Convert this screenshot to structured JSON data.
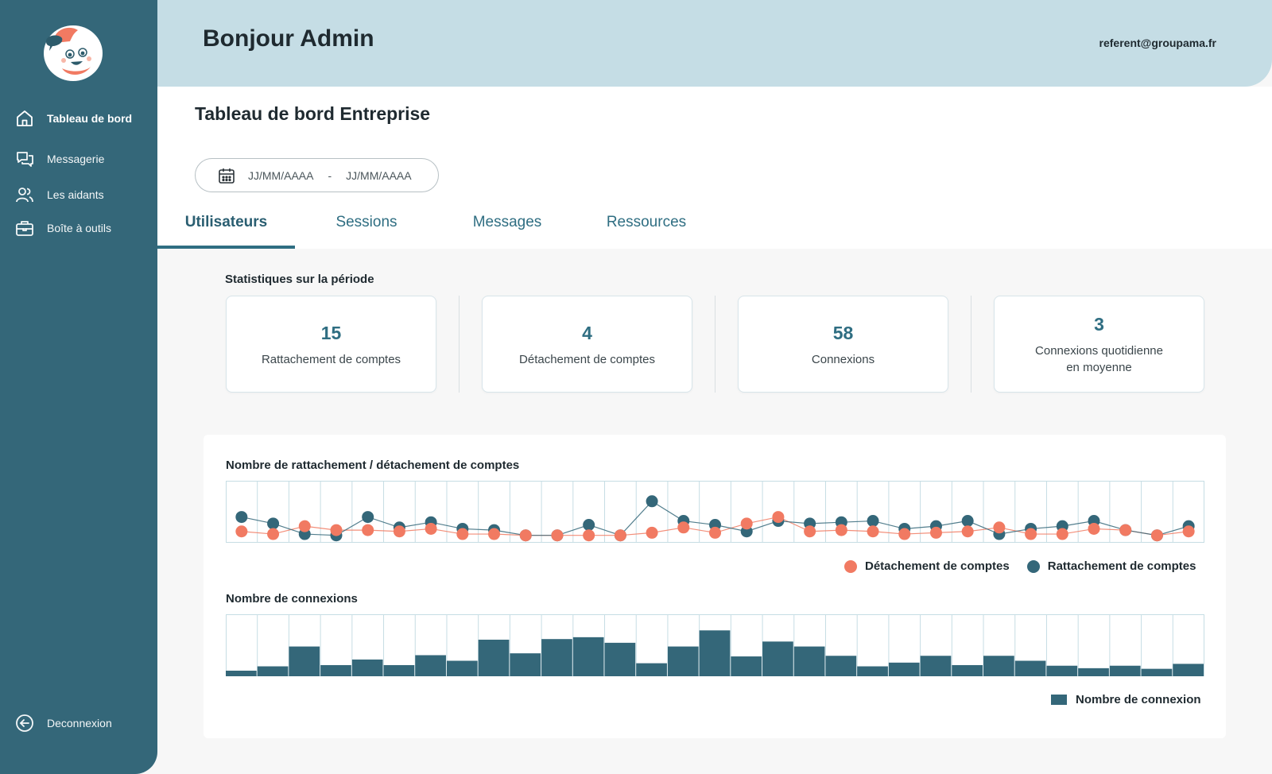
{
  "header": {
    "greeting": "Bonjour Admin",
    "email": "referent@groupama.fr"
  },
  "sidebar": {
    "items": [
      {
        "label": "Tableau de bord",
        "icon": "home-icon"
      },
      {
        "label": "Messagerie",
        "icon": "chat-icon"
      },
      {
        "label": "Les aidants",
        "icon": "users-icon"
      },
      {
        "label": "Boîte à outils",
        "icon": "toolbox-icon"
      }
    ],
    "logout": {
      "label": "Deconnexion",
      "icon": "logout-icon"
    }
  },
  "page": {
    "title": "Tableau de bord Entreprise",
    "date_start": "JJ/MM/AAAA",
    "date_sep": "-",
    "date_end": "JJ/MM/AAAA",
    "tabs": [
      "Utilisateurs",
      "Sessions",
      "Messages",
      "Ressources"
    ],
    "active_tab": "Utilisateurs"
  },
  "stats": {
    "title": "Statistiques sur la période",
    "cards": [
      {
        "value": "15",
        "label": "Rattachement de comptes"
      },
      {
        "value": "4",
        "label": "Détachement de comptes"
      },
      {
        "value": "58",
        "label": "Connexions"
      },
      {
        "value": "3",
        "label_line1": "Connexions quotidienne",
        "label_line2": "en moyenne"
      }
    ]
  },
  "colors": {
    "primary": "#346779",
    "accent": "#f17a62",
    "header_bg": "#c5dde5",
    "grid": "#c6dde4"
  },
  "chart_data": [
    {
      "type": "line",
      "title": "Nombre de rattachement / détachement de comptes",
      "legend_position": "bottom-right",
      "grid": true,
      "ylim": [
        0,
        4
      ],
      "series": [
        {
          "name": "Détachement de comptes",
          "color": "#f17a62",
          "values": [
            0.5,
            0.3,
            0.9,
            0.6,
            0.6,
            0.5,
            0.7,
            0.3,
            0.3,
            0.2,
            0.2,
            0.2,
            0.2,
            0.4,
            0.8,
            0.4,
            1.1,
            1.6,
            0.5,
            0.6,
            0.5,
            0.3,
            0.4,
            0.5,
            0.8,
            0.3,
            0.3,
            0.7,
            0.6,
            0.2,
            0.5
          ]
        },
        {
          "name": "Rattachement de comptes",
          "color": "#346779",
          "values": [
            1.6,
            1.1,
            0.3,
            0.2,
            1.6,
            0.8,
            1.2,
            0.7,
            0.6,
            0.2,
            0.2,
            1.0,
            0.2,
            2.8,
            1.3,
            1.0,
            0.5,
            1.3,
            1.1,
            1.2,
            1.3,
            0.7,
            0.9,
            1.3,
            0.3,
            0.7,
            0.9,
            1.3,
            0.6,
            0.2,
            0.9
          ]
        }
      ]
    },
    {
      "type": "bar",
      "title": "Nombre de connexions",
      "legend_position": "bottom-right",
      "grid": true,
      "ylim": [
        0,
        10
      ],
      "series": [
        {
          "name": "Nombre de connexion",
          "color": "#346779",
          "values": [
            0.9,
            1.6,
            4.8,
            1.8,
            2.7,
            1.8,
            3.4,
            2.5,
            5.9,
            3.7,
            6.0,
            6.3,
            5.4,
            2.1,
            4.8,
            7.4,
            3.2,
            5.6,
            4.8,
            3.3,
            1.6,
            2.2,
            3.3,
            1.8,
            3.3,
            2.5,
            1.7,
            1.3,
            1.7,
            1.2,
            2.0
          ]
        }
      ]
    }
  ]
}
